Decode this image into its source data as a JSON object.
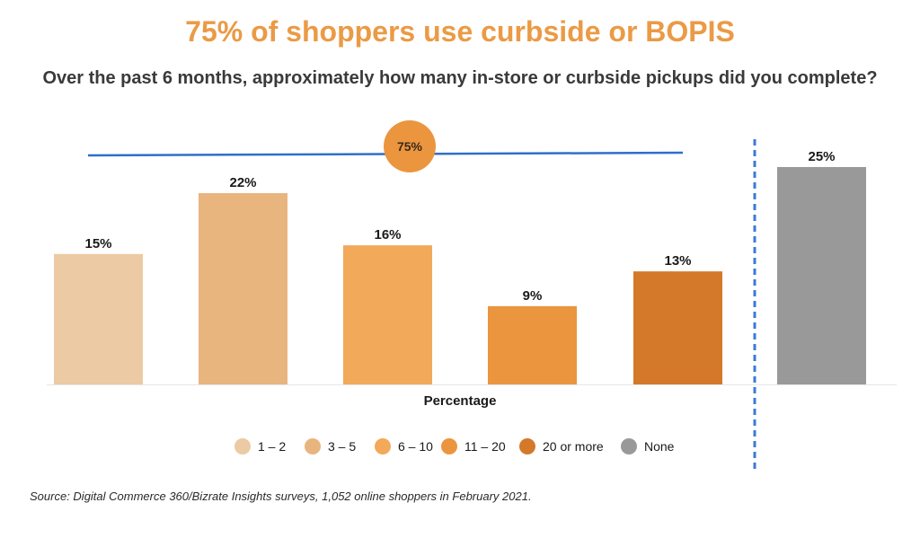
{
  "chart_data": {
    "type": "bar",
    "title": "75% of shoppers use curbside or BOPIS",
    "subtitle": "Over the past 6 months, approximately how many in-store or curbside pickups did you complete?",
    "xlabel": "Percentage",
    "categories": [
      "1 – 2",
      "3 – 5",
      "6 – 10",
      "11 – 20",
      "20 or more",
      "None"
    ],
    "values": [
      15,
      22,
      16,
      9,
      13,
      25
    ],
    "value_labels": [
      "15%",
      "22%",
      "16%",
      "9%",
      "13%",
      "25%"
    ],
    "colors": [
      "#ECCAA3",
      "#E8B57E",
      "#F2A95A",
      "#EB953E",
      "#D4782A",
      "#999999"
    ],
    "ylim": [
      0,
      25
    ],
    "legend_position": "bottom",
    "grid": false,
    "annotation": {
      "label": "75%",
      "spans_categories": [
        "1 – 2",
        "3 – 5",
        "6 – 10",
        "11 – 20",
        "20 or more"
      ],
      "line_color": "#2F6FC8",
      "bubble_color": "#EB953E"
    },
    "source": "Source: Digital Commerce 360/Bizrate Insights surveys, 1,052 online shoppers in February 2021."
  },
  "colors": {
    "title": "#EB9A45",
    "divider": "#3A7BD5"
  }
}
